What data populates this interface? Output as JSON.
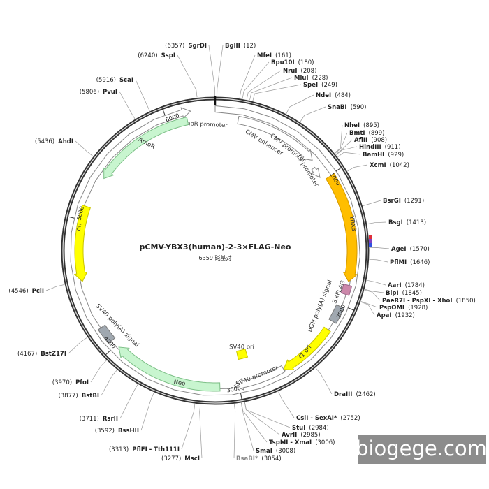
{
  "title": "pCMV-YBX3(human)-2-3×FLAG-Neo",
  "length": 6359,
  "length_unit": "碱基对",
  "sites": [
    {
      "name": "BglII",
      "position": 12,
      "position_label": "(12)"
    },
    {
      "name": "MfeI",
      "position": 161,
      "position_label": "(161)"
    },
    {
      "name": "Bpu10I",
      "position": 180,
      "position_label": "(180)"
    },
    {
      "name": "NruI",
      "position": 208,
      "position_label": "(208)"
    },
    {
      "name": "MluI",
      "position": 228,
      "position_label": "(228)"
    },
    {
      "name": "SpeI",
      "position": 249,
      "position_label": "(249)"
    },
    {
      "name": "NdeI",
      "position": 484,
      "position_label": "(484)"
    },
    {
      "name": "SnaBI",
      "position": 590,
      "position_label": "(590)"
    },
    {
      "name": "NheI",
      "position": 895,
      "position_label": "(895)"
    },
    {
      "name": "BmtI",
      "position": 899,
      "position_label": "(899)"
    },
    {
      "name": "AflII",
      "position": 908,
      "position_label": "(908)"
    },
    {
      "name": "HindIII",
      "position": 911,
      "position_label": "(911)"
    },
    {
      "name": "BamHI",
      "position": 929,
      "position_label": "(929)"
    },
    {
      "name": "XcmI",
      "position": 1042,
      "position_label": "(1042)"
    },
    {
      "name": "BsrGI",
      "position": 1291,
      "position_label": "(1291)"
    },
    {
      "name": "BsgI",
      "position": 1413,
      "position_label": "(1413)"
    },
    {
      "name": "AgeI",
      "position": 1570,
      "position_label": "(1570)"
    },
    {
      "name": "PflMI",
      "position": 1646,
      "position_label": "(1646)"
    },
    {
      "name": "AarI",
      "position": 1784,
      "position_label": "(1784)"
    },
    {
      "name": "BlpI",
      "position": 1845,
      "position_label": "(1845)"
    },
    {
      "name": "PaeR7I - PspXI - XhoI",
      "position": 1850,
      "position_label": "(1850)"
    },
    {
      "name": "PspOMI",
      "position": 1928,
      "position_label": "(1928)"
    },
    {
      "name": "ApaI",
      "position": 1932,
      "position_label": "(1932)"
    },
    {
      "name": "DraIII",
      "position": 2462,
      "position_label": "(2462)"
    },
    {
      "name": "CsiI - SexAI*",
      "position": 2752,
      "position_label": "(2752)"
    },
    {
      "name": "StuI",
      "position": 2984,
      "position_label": "(2984)"
    },
    {
      "name": "AvrII",
      "position": 2985,
      "position_label": "(2985)"
    },
    {
      "name": "TspMI - XmaI",
      "position": 3006,
      "position_label": "(3006)"
    },
    {
      "name": "SmaI",
      "position": 3008,
      "position_label": "(3008)"
    },
    {
      "name": "BsaBI*",
      "position": 3054,
      "position_label": "(3054)"
    },
    {
      "name": "MscI",
      "position": 3277,
      "position_label": "(3277)"
    },
    {
      "name": "PflFI - Tth111I",
      "position": 3313,
      "position_label": "(3313)"
    },
    {
      "name": "BssHII",
      "position": 3592,
      "position_label": "(3592)"
    },
    {
      "name": "RsrII",
      "position": 3711,
      "position_label": "(3711)"
    },
    {
      "name": "BstBI",
      "position": 3877,
      "position_label": "(3877)"
    },
    {
      "name": "PfoI",
      "position": 3970,
      "position_label": "(3970)"
    },
    {
      "name": "BstZ17I",
      "position": 4167,
      "position_label": "(4167)"
    },
    {
      "name": "PciI",
      "position": 4546,
      "position_label": "(4546)"
    },
    {
      "name": "AhdI",
      "position": 5436,
      "position_label": "(5436)"
    },
    {
      "name": "PvuI",
      "position": 5806,
      "position_label": "(5806)"
    },
    {
      "name": "ScaI",
      "position": 5916,
      "position_label": "(5916)"
    },
    {
      "name": "SspI",
      "position": 6240,
      "position_label": "(6240)"
    },
    {
      "name": "SgrDI",
      "position": 6357,
      "position_label": "(6357)"
    }
  ],
  "features": [
    "AmpR promoter",
    "AmpR",
    "ori",
    "CMV enhancer",
    "CMV promoter",
    "T7 promoter",
    "YBX3",
    "3×FLAG",
    "bGH poly(A) signal",
    "f1 ori",
    "SV40 ori",
    "SV40 promoter",
    "Neo",
    "SV40 poly(A) signal"
  ],
  "scale": [
    1000,
    2000,
    3000,
    4000,
    5000,
    6000
  ],
  "watermark": "biogege.com"
}
